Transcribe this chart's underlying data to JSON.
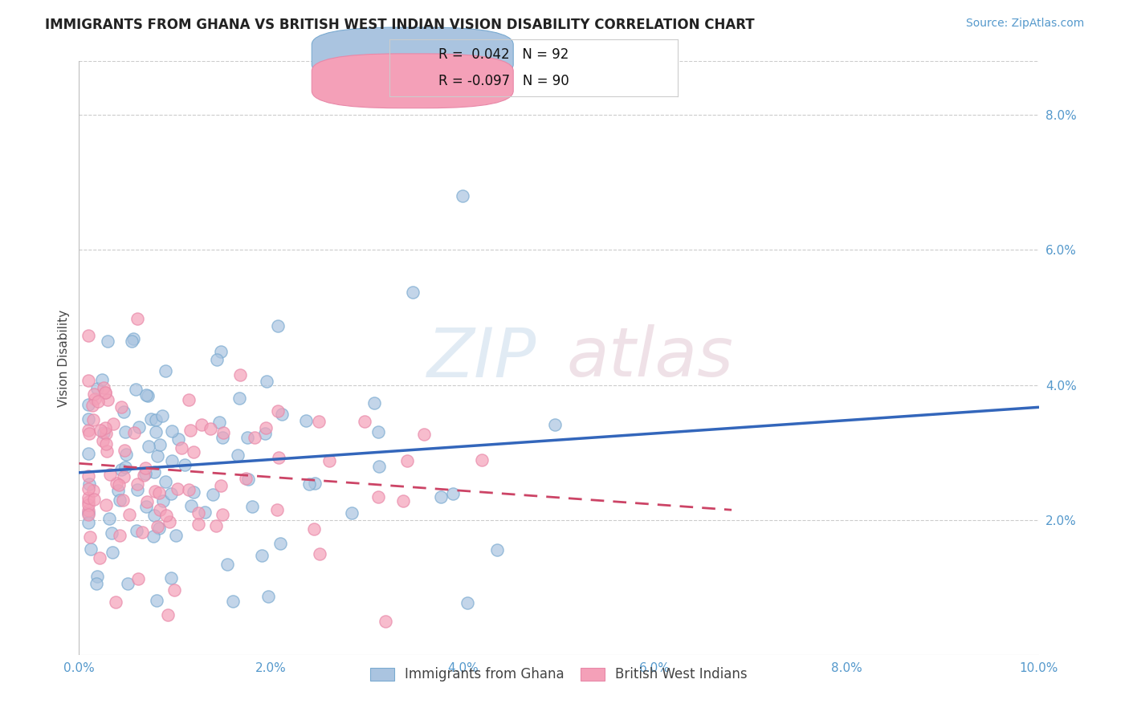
{
  "title": "IMMIGRANTS FROM GHANA VS BRITISH WEST INDIAN VISION DISABILITY CORRELATION CHART",
  "source": "Source: ZipAtlas.com",
  "ylabel": "Vision Disability",
  "xlim": [
    0.0,
    0.1
  ],
  "ylim": [
    0.0,
    0.088
  ],
  "xticks": [
    0.0,
    0.02,
    0.04,
    0.06,
    0.08,
    0.1
  ],
  "yticks_right": [
    0.02,
    0.04,
    0.06,
    0.08
  ],
  "ghana_R": 0.042,
  "ghana_N": 92,
  "bwi_R": -0.097,
  "bwi_N": 90,
  "ghana_color": "#aac4e0",
  "bwi_color": "#f4a0b8",
  "ghana_edge_color": "#7aaad0",
  "bwi_edge_color": "#e888a8",
  "ghana_line_color": "#3366bb",
  "bwi_line_color": "#cc4466",
  "legend_label_ghana": "Immigrants from Ghana",
  "legend_label_bwi": "British West Indians"
}
